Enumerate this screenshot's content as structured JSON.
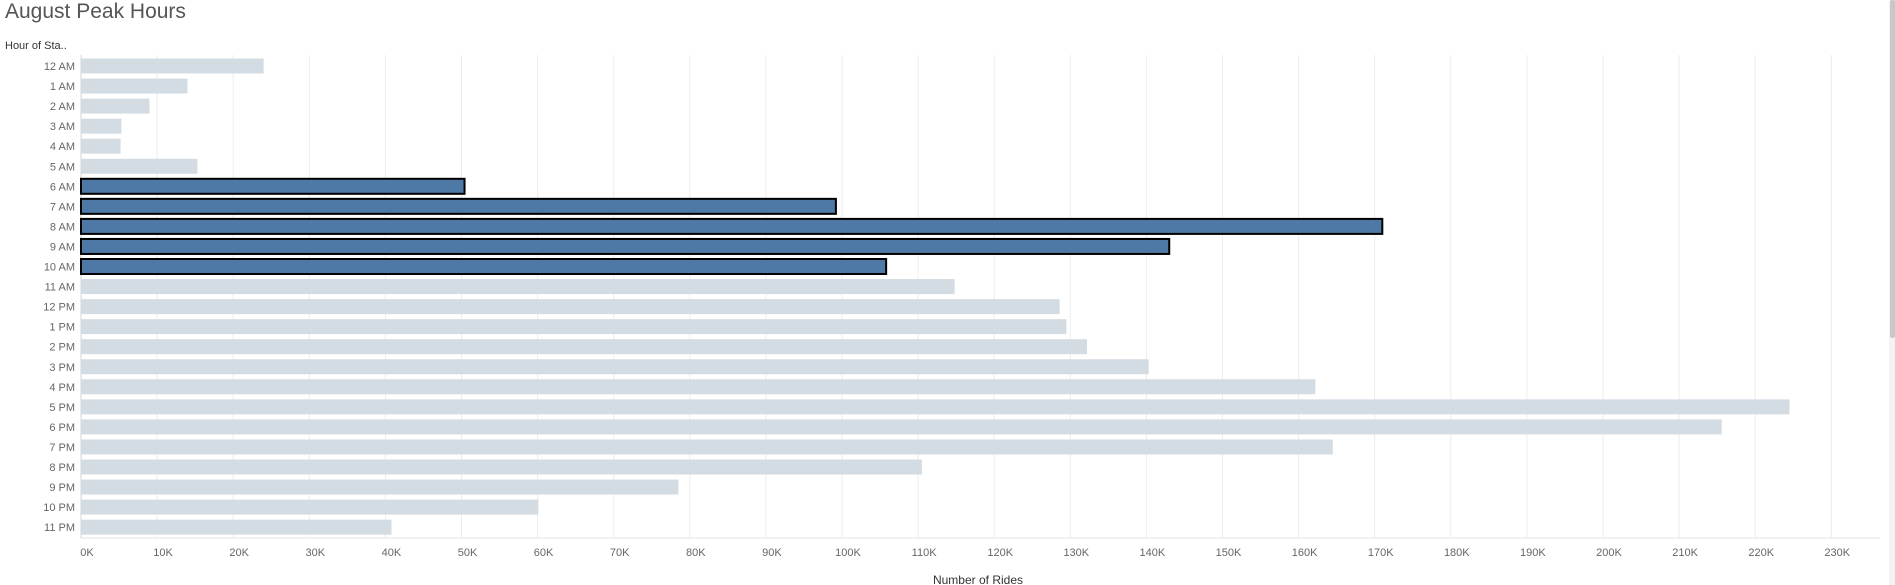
{
  "title": "August Peak Hours",
  "row_header": "Hour of Sta..",
  "colors": {
    "default_bar": "#d3dce3",
    "highlight_bar": "#4e79a7",
    "highlight_border": "#000000",
    "grid": "#ececec"
  },
  "chart_data": {
    "type": "bar",
    "orientation": "horizontal",
    "title": "August Peak Hours",
    "xlabel": "Number of Rides",
    "ylabel": "Hour of Sta..",
    "xlim": [
      0,
      235000
    ],
    "grid": true,
    "x_ticks": [
      "0K",
      "10K",
      "20K",
      "30K",
      "40K",
      "50K",
      "60K",
      "70K",
      "80K",
      "90K",
      "100K",
      "110K",
      "120K",
      "130K",
      "140K",
      "150K",
      "160K",
      "170K",
      "180K",
      "190K",
      "200K",
      "210K",
      "220K",
      "230K"
    ],
    "categories": [
      "12 AM",
      "1 AM",
      "2 AM",
      "3 AM",
      "4 AM",
      "5 AM",
      "6 AM",
      "7 AM",
      "8 AM",
      "9 AM",
      "10 AM",
      "11 AM",
      "12 PM",
      "1 PM",
      "2 PM",
      "3 PM",
      "4 PM",
      "5 PM",
      "6 PM",
      "7 PM",
      "8 PM",
      "9 PM",
      "10 PM",
      "11 PM"
    ],
    "values": [
      24000,
      14000,
      9000,
      5300,
      5200,
      15300,
      50400,
      99200,
      171000,
      143000,
      105800,
      114800,
      128600,
      129500,
      132200,
      140300,
      162200,
      224500,
      215600,
      164500,
      110500,
      78500,
      60100,
      40800
    ],
    "highlighted": [
      "6 AM",
      "7 AM",
      "8 AM",
      "9 AM",
      "10 AM"
    ]
  }
}
